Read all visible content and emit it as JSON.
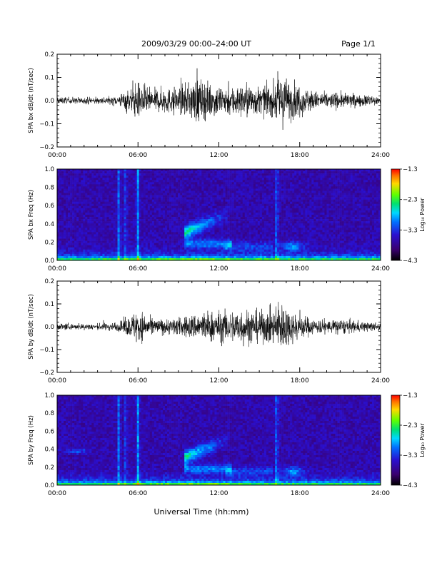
{
  "header": {
    "title": "2009/03/29  00:00–24:00 UT",
    "page": "Page 1/1"
  },
  "footer": {
    "xlabel": "Universal Time (hh:mm)"
  },
  "chart_data": [
    {
      "type": "line",
      "ylabel": "SPA bx dB/dt (nT/sec)",
      "xlim": [
        0,
        24
      ],
      "ylim": [
        -0.2,
        0.2
      ],
      "xticks": [
        "00:00",
        "06:00",
        "12:00",
        "18:00",
        "24:00"
      ],
      "yticks": [
        "0.2",
        "0.1",
        "0.0",
        "−0.1",
        "−0.2"
      ],
      "envelope": {
        "t": [
          0,
          1,
          2,
          3,
          4,
          4.5,
          5,
          5.5,
          6,
          6.5,
          7,
          8,
          9,
          10,
          10.5,
          11,
          12,
          13,
          14,
          15,
          16,
          16.5,
          17,
          17.5,
          18,
          19,
          20,
          21,
          22,
          23,
          24
        ],
        "amp": [
          0.02,
          0.02,
          0.02,
          0.02,
          0.025,
          0.03,
          0.06,
          0.08,
          0.12,
          0.1,
          0.07,
          0.08,
          0.08,
          0.12,
          0.15,
          0.12,
          0.1,
          0.09,
          0.11,
          0.09,
          0.1,
          0.17,
          0.14,
          0.12,
          0.1,
          0.06,
          0.05,
          0.05,
          0.04,
          0.035,
          0.03
        ]
      }
    },
    {
      "type": "heatmap",
      "ylabel": "SPA bx Freq (Hz)",
      "xlim": [
        0,
        24
      ],
      "ylim": [
        0.0,
        1.0
      ],
      "xticks": [
        "00:00",
        "06:00",
        "12:00",
        "18:00",
        "24:00"
      ],
      "yticks": [
        "1.0",
        "0.8",
        "0.6",
        "0.4",
        "0.2",
        "0.0"
      ],
      "colorbar": {
        "label": "Log₁₀ Power",
        "ticks": [
          "−1.3",
          "−2.3",
          "−3.3",
          "−4.3"
        ],
        "range": [
          -4.3,
          -1.3
        ]
      }
    },
    {
      "type": "line",
      "ylabel": "SPA by dB/dt (nT/sec)",
      "xlim": [
        0,
        24
      ],
      "ylim": [
        -0.2,
        0.2
      ],
      "xticks": [
        "00:00",
        "06:00",
        "12:00",
        "18:00",
        "24:00"
      ],
      "yticks": [
        "0.2",
        "0.1",
        "0.0",
        "−0.1",
        "−0.2"
      ],
      "envelope": {
        "t": [
          0,
          1,
          2,
          3,
          4,
          4.5,
          5,
          5.5,
          6,
          6.5,
          7,
          8,
          9,
          10,
          10.5,
          11,
          12,
          13,
          14,
          15,
          16,
          16.5,
          17,
          17.5,
          18,
          19,
          20,
          21,
          22,
          23,
          24
        ],
        "amp": [
          0.02,
          0.02,
          0.02,
          0.02,
          0.025,
          0.03,
          0.05,
          0.07,
          0.12,
          0.08,
          0.05,
          0.05,
          0.06,
          0.08,
          0.09,
          0.1,
          0.1,
          0.11,
          0.12,
          0.1,
          0.12,
          0.18,
          0.14,
          0.1,
          0.08,
          0.05,
          0.04,
          0.05,
          0.04,
          0.03,
          0.03
        ]
      }
    },
    {
      "type": "heatmap",
      "ylabel": "SPA by Freq (Hz)",
      "xlim": [
        0,
        24
      ],
      "ylim": [
        0.0,
        1.0
      ],
      "xticks": [
        "00:00",
        "06:00",
        "12:00",
        "18:00",
        "24:00"
      ],
      "yticks": [
        "1.0",
        "0.8",
        "0.6",
        "0.4",
        "0.2",
        "0.0"
      ],
      "colorbar": {
        "label": "Log₁₀ Power",
        "ticks": [
          "−1.3",
          "−2.3",
          "−3.3",
          "−4.3"
        ],
        "range": [
          -4.3,
          -1.3
        ]
      }
    }
  ]
}
